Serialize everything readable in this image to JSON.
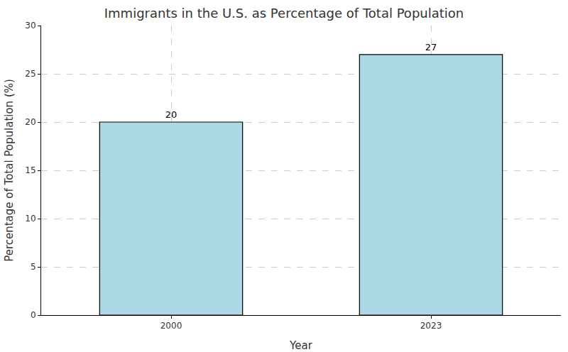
{
  "chart_data": {
    "type": "bar",
    "title": "Immigrants in the U.S. as Percentage of Total Population",
    "x_label": "Year",
    "y_label": "Percentage of Total Population (%)",
    "categories": [
      "2000",
      "2023"
    ],
    "values": [
      20,
      27
    ],
    "color": "#add8e6",
    "ylim": [
      0,
      30
    ],
    "yticks": [
      0,
      5,
      10,
      15,
      20,
      25,
      30
    ],
    "grid": true,
    "data_labels": true
  }
}
